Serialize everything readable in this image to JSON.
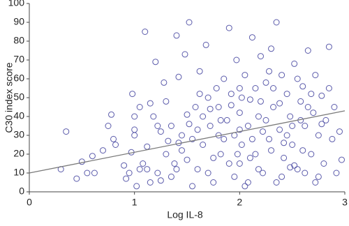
{
  "chart_data": {
    "type": "scatter",
    "xlabel": "Log IL-8",
    "ylabel": "C30 index score",
    "xlim": [
      0,
      3
    ],
    "xticks": [
      0,
      1,
      2,
      3
    ],
    "ylim": [
      0,
      100
    ],
    "yticks": [
      0,
      10,
      20,
      30,
      40,
      50,
      60,
      70,
      80,
      90,
      100
    ],
    "color": "#5b5bab",
    "line_color": "#7a7a7a",
    "x": [
      0.3,
      0.35,
      0.45,
      0.5,
      0.55,
      0.6,
      0.62,
      0.7,
      0.75,
      0.78,
      0.8,
      0.82,
      0.9,
      0.92,
      0.95,
      0.97,
      0.98,
      1.0,
      1.0,
      1.0,
      1.02,
      1.05,
      1.08,
      1.1,
      1.12,
      1.15,
      1.18,
      1.2,
      1.22,
      1.25,
      1.28,
      1.3,
      1.32,
      1.35,
      1.38,
      1.4,
      1.42,
      1.45,
      1.48,
      1.5,
      1.52,
      1.55,
      1.58,
      1.6,
      1.62,
      1.65,
      1.68,
      1.7,
      1.72,
      1.75,
      1.78,
      1.8,
      1.82,
      1.85,
      1.88,
      1.9,
      1.92,
      1.95,
      1.97,
      2.0,
      2.0,
      2.0,
      2.02,
      2.05,
      2.08,
      2.1,
      2.12,
      2.15,
      2.18,
      2.2,
      2.22,
      2.25,
      2.28,
      2.3,
      2.32,
      2.35,
      2.38,
      2.4,
      2.42,
      2.45,
      2.48,
      2.5,
      2.52,
      2.55,
      2.58,
      2.6,
      2.62,
      2.65,
      2.68,
      2.7,
      2.72,
      2.75,
      2.78,
      2.8,
      2.82,
      2.85,
      2.88,
      2.9,
      2.92,
      2.95,
      2.97,
      1.05,
      1.15,
      1.25,
      1.35,
      1.45,
      1.55,
      1.65,
      1.75,
      1.85,
      1.95,
      2.05,
      2.15,
      2.25,
      2.35,
      2.45,
      2.55,
      2.65,
      2.75,
      2.85,
      1.6,
      1.7,
      1.8,
      1.9,
      2.0,
      2.1,
      2.2,
      2.3,
      2.4,
      2.5,
      2.6,
      1.3,
      1.4,
      1.5,
      1.12,
      1.22,
      1.62,
      1.72,
      1.82,
      1.92,
      2.02,
      2.12,
      2.22,
      2.32,
      2.42,
      2.52,
      2.62,
      2.72,
      1.52,
      1.42,
      1.98,
      2.08,
      2.18,
      2.28,
      2.38,
      2.48,
      2.58,
      2.68,
      2.78
    ],
    "y": [
      12,
      32,
      7,
      16,
      10,
      19,
      10,
      22,
      35,
      41,
      28,
      25,
      14,
      7,
      10,
      21,
      52,
      40,
      30,
      33,
      3,
      12,
      15,
      85,
      24,
      47,
      40,
      69,
      10,
      6,
      58,
      20,
      27,
      35,
      15,
      83,
      61,
      30,
      73,
      41,
      90,
      28,
      45,
      12,
      64,
      25,
      78,
      50,
      35,
      18,
      55,
      45,
      20,
      60,
      38,
      87,
      52,
      30,
      70,
      55,
      42,
      15,
      25,
      62,
      35,
      49,
      82,
      20,
      40,
      72,
      10,
      58,
      28,
      76,
      45,
      90,
      33,
      62,
      18,
      52,
      40,
      25,
      68,
      12,
      48,
      56,
      35,
      75,
      20,
      42,
      62,
      30,
      51,
      15,
      38,
      77,
      28,
      45,
      10,
      32,
      17,
      45,
      5,
      32,
      8,
      22,
      3,
      40,
      5,
      28,
      8,
      3,
      55,
      38,
      5,
      30,
      60,
      45,
      8,
      55,
      33,
      10,
      30,
      15,
      33,
      18,
      48,
      22,
      8,
      35,
      22,
      48,
      12,
      17,
      12,
      35,
      52,
      44,
      38,
      46,
      50,
      28,
      32,
      55,
      26,
      14,
      10,
      5,
      36,
      26,
      20,
      5,
      12,
      64,
      47,
      13,
      38,
      52,
      36
    ],
    "fit_x": [
      0,
      3
    ],
    "fit_y": [
      10,
      43
    ]
  }
}
